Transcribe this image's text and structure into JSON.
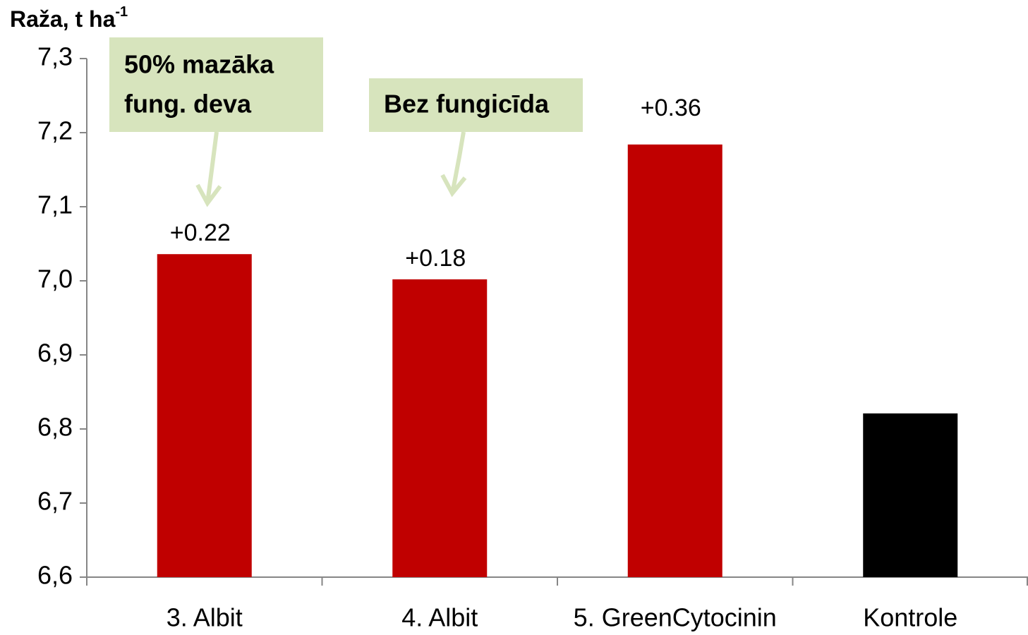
{
  "chart_data": {
    "type": "bar",
    "y_label": "Raža, t ha",
    "y_label_sup": "-1",
    "categories": [
      "3. Albit",
      "4. Albit",
      "5. GreenCytocinin",
      "Kontrole"
    ],
    "values": [
      7.036,
      7.002,
      7.184,
      6.821
    ],
    "difference_labels": [
      "+0.22",
      "+0.18",
      "+0.36",
      null
    ],
    "colors": [
      "#c00000",
      "#c00000",
      "#c00000",
      "#000000"
    ],
    "ylim": [
      6.6,
      7.3
    ],
    "yticks": [
      {
        "value": 6.6,
        "label": "6,6"
      },
      {
        "value": 6.7,
        "label": "6,7"
      },
      {
        "value": 6.8,
        "label": "6,8"
      },
      {
        "value": 6.9,
        "label": "6,9"
      },
      {
        "value": 7.0,
        "label": "7,0"
      },
      {
        "value": 7.1,
        "label": "7,1"
      },
      {
        "value": 7.2,
        "label": "7,2"
      },
      {
        "value": 7.3,
        "label": "7,3"
      }
    ],
    "grid": false,
    "callouts": [
      {
        "lines": [
          "50% mazāka",
          "fung. deva"
        ]
      },
      {
        "lines": [
          "Bez fungicīda"
        ]
      }
    ]
  }
}
